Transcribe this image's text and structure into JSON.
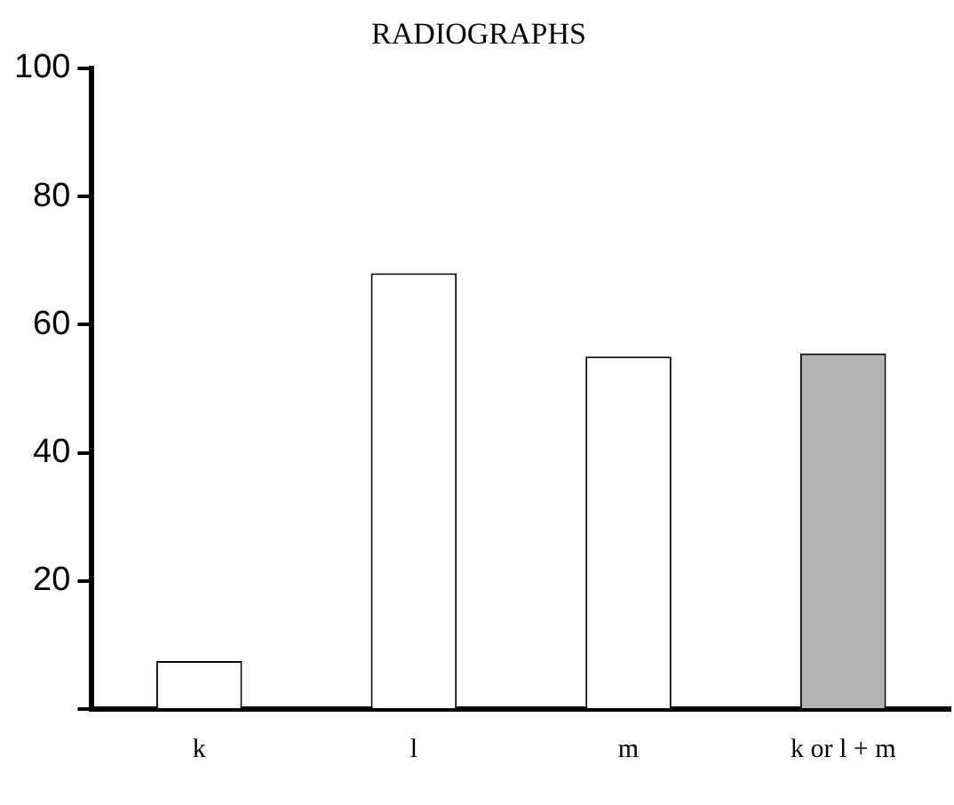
{
  "chart_data": {
    "type": "bar",
    "title": "RADIOGRAPHS",
    "categories": [
      "k",
      "l",
      "m",
      "k or l + m"
    ],
    "values": [
      7.5,
      68,
      55,
      55.5
    ],
    "colors": [
      "#ffffff",
      "#ffffff",
      "#ffffff",
      "#b4b4b4"
    ],
    "ylim": [
      0,
      100
    ],
    "yticks": [
      {
        "value": 0,
        "label": null
      },
      20,
      40,
      60,
      80,
      100
    ],
    "grid": false,
    "legend": false
  }
}
